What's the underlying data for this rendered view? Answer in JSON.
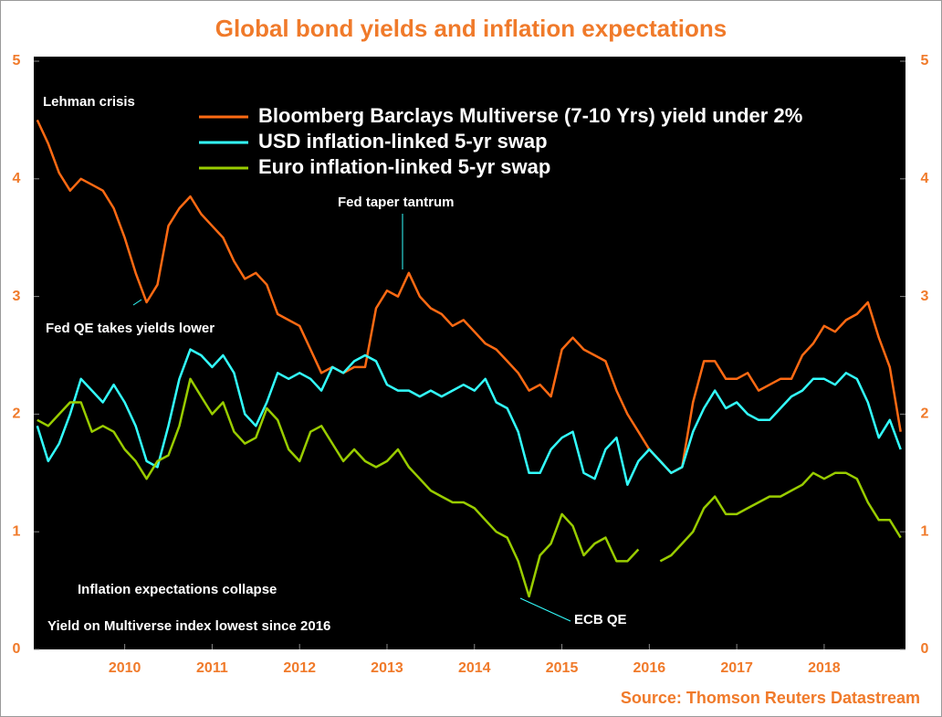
{
  "chart_data": {
    "type": "line",
    "title": "Global bond yields and inflation expectations",
    "source": "Source: Thomson Reuters Datastream",
    "annotations": [
      "Lehman crisis",
      "Fed QE takes yields lower",
      "Fed taper tantrum",
      "Inflation expectations collapse",
      "ECB QE",
      "Yield on Multiverse index lowest since 2016"
    ],
    "x": [
      2009,
      2009.125,
      2009.25,
      2009.375,
      2009.5,
      2009.625,
      2009.75,
      2009.875,
      2010,
      2010.125,
      2010.25,
      2010.375,
      2010.5,
      2010.625,
      2010.75,
      2010.875,
      2011,
      2011.125,
      2011.25,
      2011.375,
      2011.5,
      2011.625,
      2011.75,
      2011.875,
      2012,
      2012.125,
      2012.25,
      2012.375,
      2012.5,
      2012.625,
      2012.75,
      2012.875,
      2013,
      2013.125,
      2013.25,
      2013.375,
      2013.5,
      2013.625,
      2013.75,
      2013.875,
      2014,
      2014.125,
      2014.25,
      2014.375,
      2014.5,
      2014.625,
      2014.75,
      2014.875,
      2015,
      2015.125,
      2015.25,
      2015.375,
      2015.5,
      2015.625,
      2015.75,
      2015.875,
      2016,
      2016.125,
      2016.25,
      2016.375,
      2016.5,
      2016.625,
      2016.75,
      2016.875,
      2017,
      2017.125,
      2017.25,
      2017.375,
      2017.5,
      2017.625,
      2017.75,
      2017.875,
      2018,
      2018.125,
      2018.25,
      2018.375,
      2018.5,
      2018.625,
      2018.75,
      2018.875
    ],
    "series": [
      {
        "name": "Bloomberg Barclays Multiverse (7-10 Yrs) yield under 2%",
        "color": "#ff6a13",
        "values": [
          4.5,
          4.3,
          4.05,
          3.9,
          4.0,
          3.95,
          3.9,
          3.75,
          3.5,
          3.2,
          2.95,
          3.1,
          3.6,
          3.75,
          3.85,
          3.7,
          3.6,
          3.5,
          3.3,
          3.15,
          3.2,
          3.1,
          2.85,
          2.8,
          2.75,
          2.55,
          2.35,
          2.4,
          2.35,
          2.4,
          2.4,
          2.9,
          3.05,
          3.0,
          3.2,
          3.0,
          2.9,
          2.85,
          2.75,
          2.8,
          2.7,
          2.6,
          2.55,
          2.45,
          2.35,
          2.2,
          2.25,
          2.15,
          2.55,
          2.65,
          2.55,
          2.5,
          2.45,
          2.2,
          2.0,
          1.85,
          1.7,
          1.6,
          1.5,
          1.55,
          2.1,
          2.45,
          2.45,
          2.3,
          2.3,
          2.35,
          2.2,
          2.25,
          2.3,
          2.3,
          2.5,
          2.6,
          2.75,
          2.7,
          2.8,
          2.85,
          2.95,
          2.65,
          2.4,
          1.85
        ]
      },
      {
        "name": "USD inflation-linked 5-yr swap",
        "color": "#33ffff",
        "values": [
          1.9,
          1.6,
          1.75,
          2.0,
          2.3,
          2.2,
          2.1,
          2.25,
          2.1,
          1.9,
          1.6,
          1.55,
          1.9,
          2.3,
          2.55,
          2.5,
          2.4,
          2.5,
          2.35,
          2.0,
          1.9,
          2.1,
          2.35,
          2.3,
          2.35,
          2.3,
          2.2,
          2.4,
          2.35,
          2.45,
          2.5,
          2.45,
          2.25,
          2.2,
          2.2,
          2.15,
          2.2,
          2.15,
          2.2,
          2.25,
          2.2,
          2.3,
          2.1,
          2.05,
          1.85,
          1.5,
          1.5,
          1.7,
          1.8,
          1.85,
          1.5,
          1.45,
          1.7,
          1.8,
          1.4,
          1.6,
          1.7,
          1.6,
          1.5,
          1.55,
          1.85,
          2.05,
          2.2,
          2.05,
          2.1,
          2.0,
          1.95,
          1.95,
          2.05,
          2.15,
          2.2,
          2.3,
          2.3,
          2.25,
          2.35,
          2.3,
          2.1,
          1.8,
          1.95,
          1.7
        ]
      },
      {
        "name": "Euro inflation-linked 5-yr swap",
        "color": "#99cc00",
        "values": [
          1.95,
          1.9,
          2.0,
          2.1,
          2.1,
          1.85,
          1.9,
          1.85,
          1.7,
          1.6,
          1.45,
          1.6,
          1.65,
          1.9,
          2.3,
          2.15,
          2.0,
          2.1,
          1.85,
          1.75,
          1.8,
          2.05,
          1.95,
          1.7,
          1.6,
          1.85,
          1.9,
          1.75,
          1.6,
          1.7,
          1.6,
          1.55,
          1.6,
          1.7,
          1.55,
          1.45,
          1.35,
          1.3,
          1.25,
          1.25,
          1.2,
          1.1,
          1.0,
          0.95,
          0.75,
          0.45,
          0.8,
          0.9,
          1.15,
          1.05,
          0.8,
          0.9,
          0.95,
          0.75,
          0.75,
          0.85,
          null,
          0.75,
          0.8,
          0.9,
          1.0,
          1.2,
          1.3,
          1.15,
          1.15,
          1.2,
          1.25,
          1.3,
          1.3,
          1.35,
          1.4,
          1.5,
          1.45,
          1.5,
          1.5,
          1.45,
          1.25,
          1.1,
          1.1,
          0.95
        ]
      }
    ],
    "xlim": [
      2008.96,
      2018.93
    ],
    "xticks": [
      2010,
      2011,
      2012,
      2013,
      2014,
      2015,
      2016,
      2017,
      2018
    ],
    "ylim": [
      0,
      5
    ],
    "yticks": [
      0,
      1,
      2,
      3,
      4,
      5
    ],
    "legend": "top-right"
  }
}
